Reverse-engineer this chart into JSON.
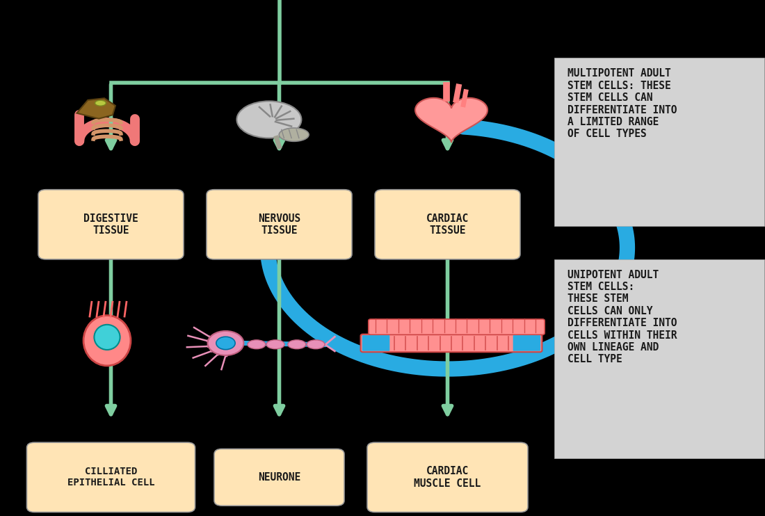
{
  "bg_color": "#000000",
  "arrow_color_green": "#7FCEA0",
  "arrow_color_blue": "#29ABE2",
  "box_color_peach": "#FFE4B5",
  "box_color_gray": "#D3D3D3",
  "text_color_dark": "#1a1a1a",
  "labels": {
    "digestive_tissue": "DIGESTIVE\nTISSUE",
    "nervous_tissue": "NERVOUS\nTISSUE",
    "cardiac_tissue": "CARDIAC\nTISSUE",
    "cilliated": "CILLIATED\nEPITHELIAL CELL",
    "neurone": "NEURONE",
    "cardiac_muscle": "CARDIAC\nMUSCLE CELL",
    "multipotent": "MULTIPOTENT ADULT\nSTEM CELLS: THESE\nSTEM CELLS CAN\nDIFFERENTIATE INTO\nA LIMITED RANGE\nOF CELL TYPES",
    "unipotent": "UNIPOTENT ADULT\nSTEM CELLS:\nTHESE STEM\nCELLS CAN ONLY\nDIFFERENTIATE INTO\nCELLS WITHIN THEIR\nOWN LINEAGE AND\nCELL TYPE"
  }
}
